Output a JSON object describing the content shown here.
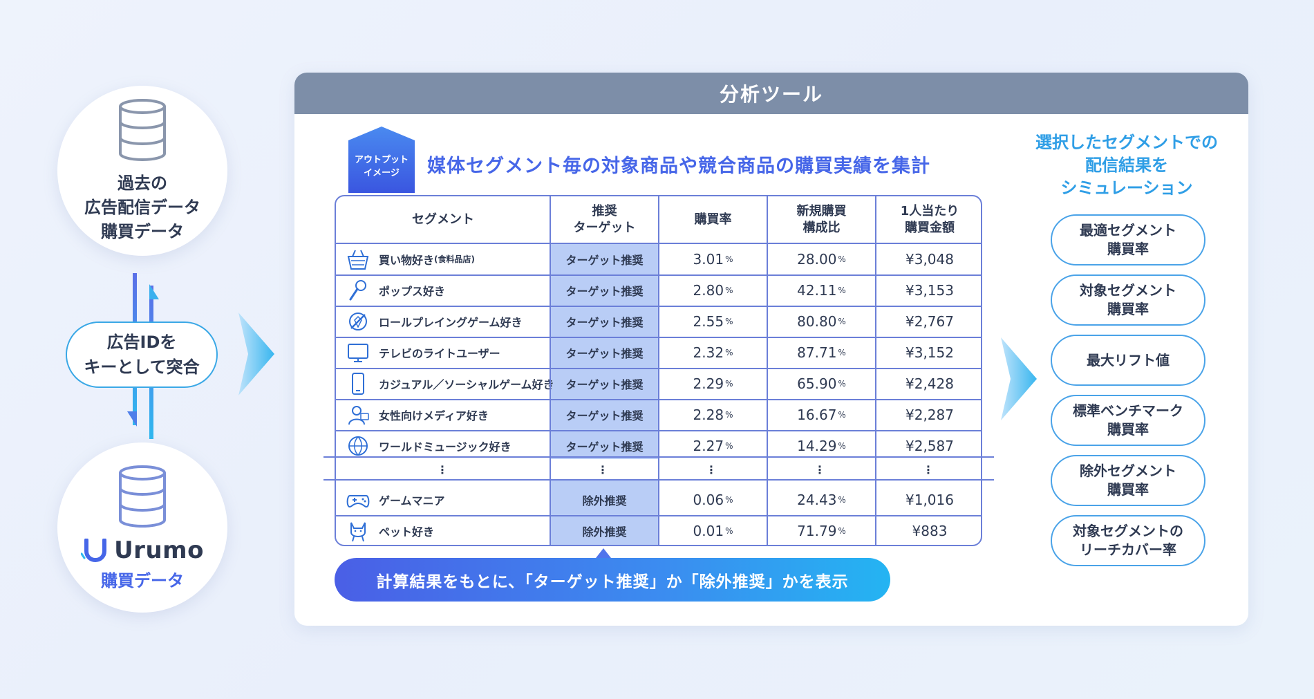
{
  "left": {
    "top_circle_lines": [
      "過去の",
      "広告配信データ",
      "購買データ"
    ],
    "key_pill_lines": [
      "広告IDを",
      "キーとして突合"
    ],
    "urumo_brand": "Urumo",
    "urumo_sub": "購買データ"
  },
  "panel": {
    "header": "分析ツール",
    "output_badge_lines": [
      "アウトプット",
      "イメージ"
    ],
    "headline": "媒体セグメント毎の対象商品や競合商品の購買実績を集計",
    "table": {
      "headers": {
        "segment": "セグメント",
        "target": [
          "推奨",
          "ターゲット"
        ],
        "rate": "購買率",
        "share": [
          "新規購買",
          "構成比"
        ],
        "amount": [
          "1人当たり",
          "購買金額"
        ]
      },
      "rows": [
        {
          "icon": "shopping-basket-icon",
          "segment": "買い物好き",
          "segment_note": "(食料品店)",
          "target": "ターゲット推奨",
          "rate": "3.01",
          "share": "28.00",
          "amount": "¥3,048"
        },
        {
          "icon": "microphone-icon",
          "segment": "ポップス好き",
          "segment_note": "",
          "target": "ターゲット推奨",
          "rate": "2.80",
          "share": "42.11",
          "amount": "¥3,153"
        },
        {
          "icon": "sword-shield-icon",
          "segment": "ロールプレイングゲーム好き",
          "segment_note": "",
          "target": "ターゲット推奨",
          "rate": "2.55",
          "share": "80.80",
          "amount": "¥2,767"
        },
        {
          "icon": "television-icon",
          "segment": "テレビのライトユーザー",
          "segment_note": "",
          "target": "ターゲット推奨",
          "rate": "2.32",
          "share": "87.71",
          "amount": "¥3,152"
        },
        {
          "icon": "smartphone-icon",
          "segment": "カジュアル／ソーシャルゲーム好き",
          "segment_note": "",
          "target": "ターゲット推奨",
          "rate": "2.29",
          "share": "65.90",
          "amount": "¥2,428"
        },
        {
          "icon": "woman-media-icon",
          "segment": "女性向けメディア好き",
          "segment_note": "",
          "target": "ターゲット推奨",
          "rate": "2.28",
          "share": "16.67",
          "amount": "¥2,287"
        },
        {
          "icon": "globe-music-icon",
          "segment": "ワールドミュージック好き",
          "segment_note": "",
          "target": "ターゲット推奨",
          "rate": "2.27",
          "share": "14.29",
          "amount": "¥2,587"
        }
      ],
      "ellipsis": "⋮",
      "tail_rows": [
        {
          "icon": "gamepad-icon",
          "segment": "ゲームマニア",
          "segment_note": "",
          "target": "除外推奨",
          "rate": "0.06",
          "share": "24.43",
          "amount": "¥1,016"
        },
        {
          "icon": "cat-icon",
          "segment": "ペット好き",
          "segment_note": "",
          "target": "除外推奨",
          "rate": "0.01",
          "share": "71.79",
          "amount": "¥883"
        }
      ],
      "percent_unit": "%"
    },
    "callout": "計算結果をもとに、「ターゲット推奨」か「除外推奨」かを表示"
  },
  "right": {
    "title_lines": [
      "選択したセグメントでの",
      "配信結果を",
      "シミュレーション"
    ],
    "metrics": [
      [
        "最適セグメント",
        "購買率"
      ],
      [
        "対象セグメント",
        "購買率"
      ],
      [
        "最大リフト値"
      ],
      [
        "標準ベンチマーク",
        "購買率"
      ],
      [
        "除外セグメント",
        "購買率"
      ],
      [
        "対象セグメントの",
        "リーチカバー率"
      ]
    ]
  },
  "colors": {
    "accent_blue": "#4666e8",
    "light_blue": "#2f9ee6",
    "panel_header": "#7d8ea8",
    "table_border": "#6b7fd8",
    "target_column": "#b9cdf6"
  }
}
